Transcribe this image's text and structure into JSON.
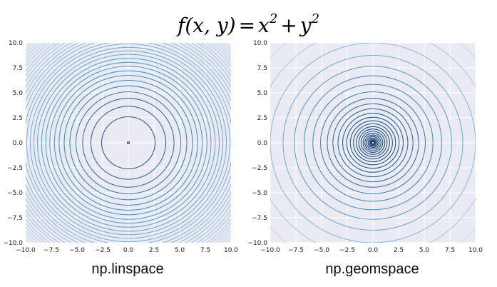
{
  "title": {
    "f": "f",
    "args": "(x, y)",
    "eq": "=",
    "x": "x",
    "two_a": "2",
    "plus": "+",
    "y": "y",
    "two_b": "2"
  },
  "colors": {
    "background": "#eaeaf2",
    "grid": "#ffffff",
    "colormap": "Blues"
  },
  "chart_data": [
    {
      "type": "contour",
      "function": "x^2 + y^2",
      "caption": "np.linspace",
      "xlim": [
        -10.0,
        10.0
      ],
      "ylim": [
        -10.0,
        10.0
      ],
      "x_ticks": [
        "−10.0",
        "−7.5",
        "−5.0",
        "−2.5",
        "0.0",
        "2.5",
        "5.0",
        "7.5",
        "10.0"
      ],
      "y_ticks": [
        "10.0",
        "7.5",
        "5.0",
        "2.5",
        "0.0",
        "−2.5",
        "−5.0",
        "−7.5",
        "−10.0"
      ],
      "level_radii": [
        0.1,
        2.6,
        3.65,
        4.45,
        5.1,
        5.7,
        6.25,
        6.75,
        7.2,
        7.65,
        8.05,
        8.45,
        8.85,
        9.2,
        9.55,
        9.9,
        10.2,
        10.55,
        10.85,
        11.15,
        11.45,
        11.75,
        12.05,
        12.3,
        12.6,
        12.85,
        13.1,
        13.35,
        13.6,
        13.85
      ],
      "grid": true
    },
    {
      "type": "contour",
      "function": "x^2 + y^2",
      "caption": "np.geomspace",
      "xlim": [
        -10.0,
        10.0
      ],
      "ylim": [
        -10.0,
        10.0
      ],
      "x_ticks": [
        "−10.0",
        "−7.5",
        "−5.0",
        "−2.5",
        "0.0",
        "2.5",
        "5.0",
        "7.5",
        "10.0"
      ],
      "y_ticks": [
        "10.0",
        "7.5",
        "5.0",
        "2.5",
        "0.0",
        "−2.5",
        "−5.0",
        "−7.5",
        "−10.0"
      ],
      "level_radii": [
        0.12,
        0.18,
        0.26,
        0.36,
        0.48,
        0.62,
        0.78,
        0.96,
        1.16,
        1.38,
        1.62,
        1.9,
        2.2,
        2.55,
        2.95,
        3.4,
        3.9,
        4.45,
        5.1,
        5.85,
        6.7,
        7.65,
        8.75,
        10.0,
        11.45,
        13.1
      ],
      "grid": true
    }
  ]
}
